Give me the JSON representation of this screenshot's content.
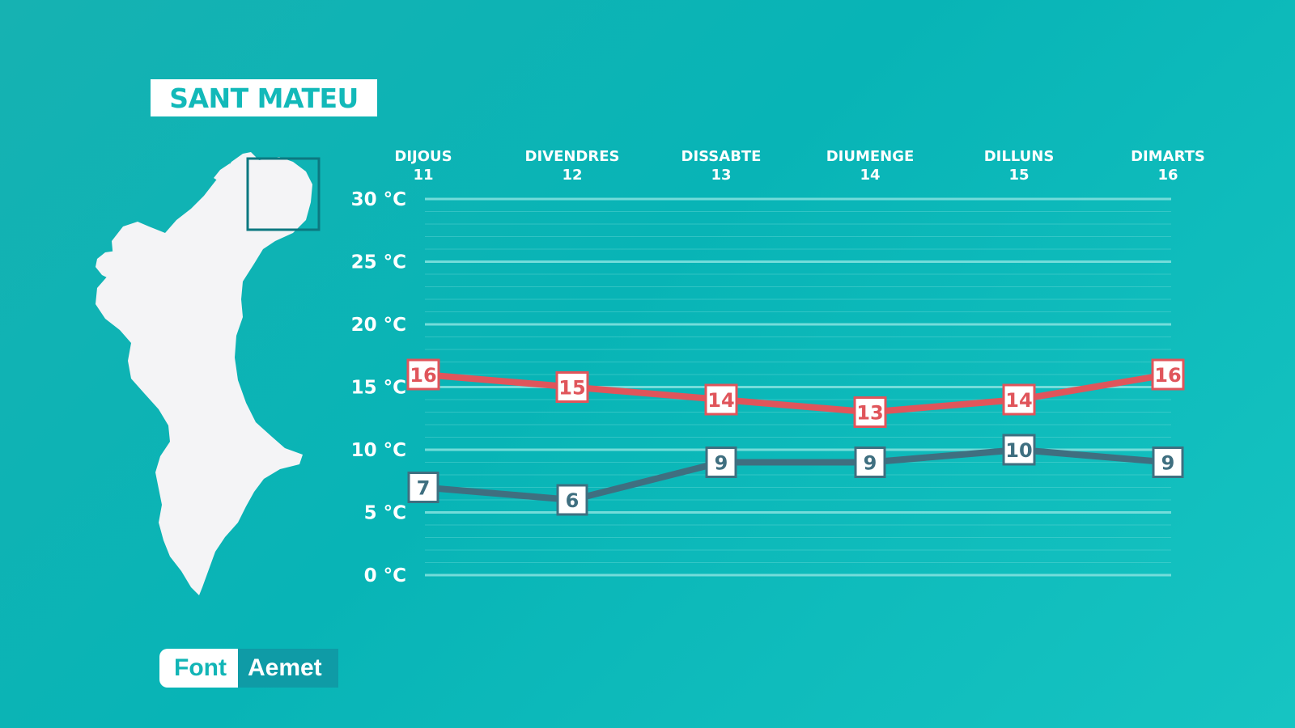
{
  "location": "SANT MATEU",
  "source": {
    "label": "Font",
    "value": "Aemet"
  },
  "colors": {
    "background": "#0bb4b6",
    "max_line": "#e0555b",
    "min_line": "#3f6f80",
    "grid": "#7fe0de",
    "text": "#ffffff"
  },
  "icons": {
    "map": "valencian-community-map-icon"
  },
  "chart_data": {
    "type": "line",
    "title": "SANT MATEU",
    "categories": [
      {
        "day": "DIJOUS",
        "date": "11"
      },
      {
        "day": "DIVENDRES",
        "date": "12"
      },
      {
        "day": "DISSABTE",
        "date": "13"
      },
      {
        "day": "DIUMENGE",
        "date": "14"
      },
      {
        "day": "DILLUNS",
        "date": "15"
      },
      {
        "day": "DIMARTS",
        "date": "16"
      }
    ],
    "series": [
      {
        "key": "max",
        "color": "#e0555b",
        "values": [
          16,
          15,
          14,
          13,
          14,
          16
        ]
      },
      {
        "key": "min",
        "color": "#3f6f80",
        "values": [
          7,
          6,
          9,
          9,
          10,
          9
        ]
      }
    ],
    "yticks": [
      "30 °C",
      "25 °C",
      "20 °C",
      "15 °C",
      "10 °C",
      "5 °C",
      "0 °C"
    ],
    "ylim": [
      0,
      30
    ],
    "ytick_step": 5,
    "grid": true
  }
}
